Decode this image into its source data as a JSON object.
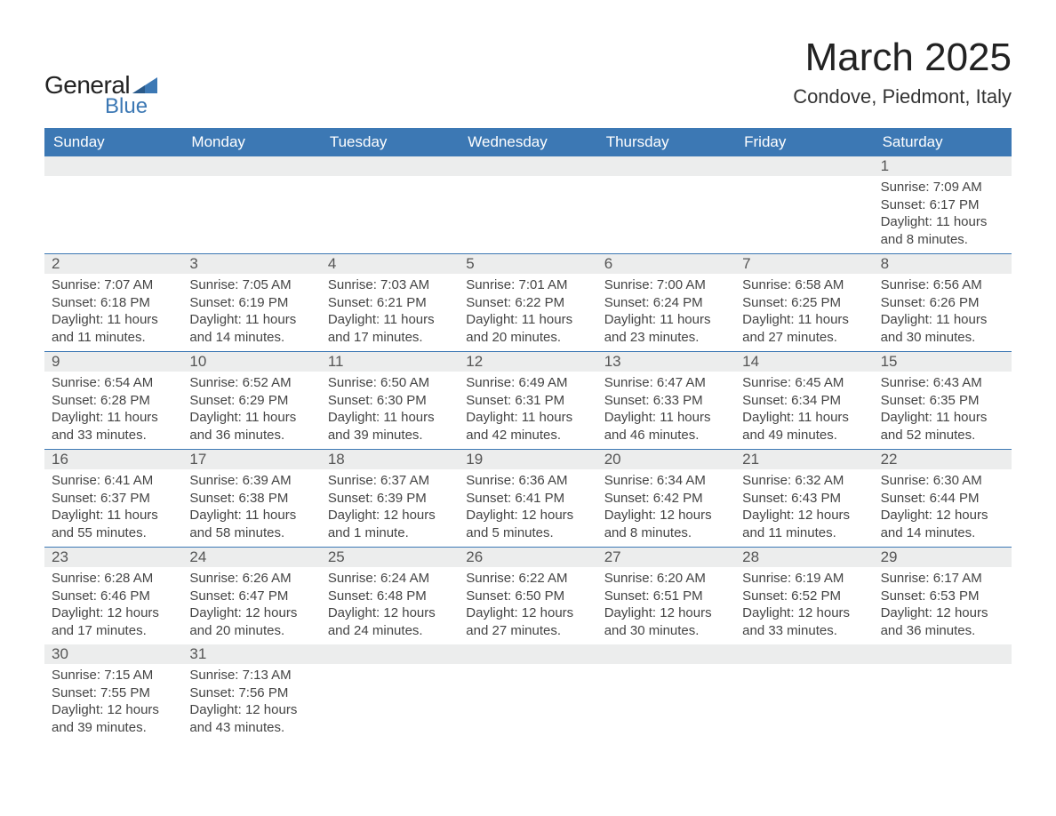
{
  "logo": {
    "text_general": "General",
    "text_blue": "Blue",
    "flag_color": "#3c78b4"
  },
  "title": {
    "month": "March 2025",
    "location": "Condove, Piedmont, Italy",
    "month_fontsize": 44,
    "location_fontsize": 22,
    "text_color": "#222222"
  },
  "style": {
    "header_bg": "#3c78b4",
    "header_text": "#ffffff",
    "daynum_bg": "#eceded",
    "body_text": "#444444",
    "rule_color": "#3c78b4",
    "font_family": "Arial"
  },
  "weekdays": [
    "Sunday",
    "Monday",
    "Tuesday",
    "Wednesday",
    "Thursday",
    "Friday",
    "Saturday"
  ],
  "weeks": [
    [
      {
        "day": "",
        "sunrise": "",
        "sunset": "",
        "daylight": ""
      },
      {
        "day": "",
        "sunrise": "",
        "sunset": "",
        "daylight": ""
      },
      {
        "day": "",
        "sunrise": "",
        "sunset": "",
        "daylight": ""
      },
      {
        "day": "",
        "sunrise": "",
        "sunset": "",
        "daylight": ""
      },
      {
        "day": "",
        "sunrise": "",
        "sunset": "",
        "daylight": ""
      },
      {
        "day": "",
        "sunrise": "",
        "sunset": "",
        "daylight": ""
      },
      {
        "day": "1",
        "sunrise": "Sunrise: 7:09 AM",
        "sunset": "Sunset: 6:17 PM",
        "daylight": "Daylight: 11 hours and 8 minutes."
      }
    ],
    [
      {
        "day": "2",
        "sunrise": "Sunrise: 7:07 AM",
        "sunset": "Sunset: 6:18 PM",
        "daylight": "Daylight: 11 hours and 11 minutes."
      },
      {
        "day": "3",
        "sunrise": "Sunrise: 7:05 AM",
        "sunset": "Sunset: 6:19 PM",
        "daylight": "Daylight: 11 hours and 14 minutes."
      },
      {
        "day": "4",
        "sunrise": "Sunrise: 7:03 AM",
        "sunset": "Sunset: 6:21 PM",
        "daylight": "Daylight: 11 hours and 17 minutes."
      },
      {
        "day": "5",
        "sunrise": "Sunrise: 7:01 AM",
        "sunset": "Sunset: 6:22 PM",
        "daylight": "Daylight: 11 hours and 20 minutes."
      },
      {
        "day": "6",
        "sunrise": "Sunrise: 7:00 AM",
        "sunset": "Sunset: 6:24 PM",
        "daylight": "Daylight: 11 hours and 23 minutes."
      },
      {
        "day": "7",
        "sunrise": "Sunrise: 6:58 AM",
        "sunset": "Sunset: 6:25 PM",
        "daylight": "Daylight: 11 hours and 27 minutes."
      },
      {
        "day": "8",
        "sunrise": "Sunrise: 6:56 AM",
        "sunset": "Sunset: 6:26 PM",
        "daylight": "Daylight: 11 hours and 30 minutes."
      }
    ],
    [
      {
        "day": "9",
        "sunrise": "Sunrise: 6:54 AM",
        "sunset": "Sunset: 6:28 PM",
        "daylight": "Daylight: 11 hours and 33 minutes."
      },
      {
        "day": "10",
        "sunrise": "Sunrise: 6:52 AM",
        "sunset": "Sunset: 6:29 PM",
        "daylight": "Daylight: 11 hours and 36 minutes."
      },
      {
        "day": "11",
        "sunrise": "Sunrise: 6:50 AM",
        "sunset": "Sunset: 6:30 PM",
        "daylight": "Daylight: 11 hours and 39 minutes."
      },
      {
        "day": "12",
        "sunrise": "Sunrise: 6:49 AM",
        "sunset": "Sunset: 6:31 PM",
        "daylight": "Daylight: 11 hours and 42 minutes."
      },
      {
        "day": "13",
        "sunrise": "Sunrise: 6:47 AM",
        "sunset": "Sunset: 6:33 PM",
        "daylight": "Daylight: 11 hours and 46 minutes."
      },
      {
        "day": "14",
        "sunrise": "Sunrise: 6:45 AM",
        "sunset": "Sunset: 6:34 PM",
        "daylight": "Daylight: 11 hours and 49 minutes."
      },
      {
        "day": "15",
        "sunrise": "Sunrise: 6:43 AM",
        "sunset": "Sunset: 6:35 PM",
        "daylight": "Daylight: 11 hours and 52 minutes."
      }
    ],
    [
      {
        "day": "16",
        "sunrise": "Sunrise: 6:41 AM",
        "sunset": "Sunset: 6:37 PM",
        "daylight": "Daylight: 11 hours and 55 minutes."
      },
      {
        "day": "17",
        "sunrise": "Sunrise: 6:39 AM",
        "sunset": "Sunset: 6:38 PM",
        "daylight": "Daylight: 11 hours and 58 minutes."
      },
      {
        "day": "18",
        "sunrise": "Sunrise: 6:37 AM",
        "sunset": "Sunset: 6:39 PM",
        "daylight": "Daylight: 12 hours and 1 minute."
      },
      {
        "day": "19",
        "sunrise": "Sunrise: 6:36 AM",
        "sunset": "Sunset: 6:41 PM",
        "daylight": "Daylight: 12 hours and 5 minutes."
      },
      {
        "day": "20",
        "sunrise": "Sunrise: 6:34 AM",
        "sunset": "Sunset: 6:42 PM",
        "daylight": "Daylight: 12 hours and 8 minutes."
      },
      {
        "day": "21",
        "sunrise": "Sunrise: 6:32 AM",
        "sunset": "Sunset: 6:43 PM",
        "daylight": "Daylight: 12 hours and 11 minutes."
      },
      {
        "day": "22",
        "sunrise": "Sunrise: 6:30 AM",
        "sunset": "Sunset: 6:44 PM",
        "daylight": "Daylight: 12 hours and 14 minutes."
      }
    ],
    [
      {
        "day": "23",
        "sunrise": "Sunrise: 6:28 AM",
        "sunset": "Sunset: 6:46 PM",
        "daylight": "Daylight: 12 hours and 17 minutes."
      },
      {
        "day": "24",
        "sunrise": "Sunrise: 6:26 AM",
        "sunset": "Sunset: 6:47 PM",
        "daylight": "Daylight: 12 hours and 20 minutes."
      },
      {
        "day": "25",
        "sunrise": "Sunrise: 6:24 AM",
        "sunset": "Sunset: 6:48 PM",
        "daylight": "Daylight: 12 hours and 24 minutes."
      },
      {
        "day": "26",
        "sunrise": "Sunrise: 6:22 AM",
        "sunset": "Sunset: 6:50 PM",
        "daylight": "Daylight: 12 hours and 27 minutes."
      },
      {
        "day": "27",
        "sunrise": "Sunrise: 6:20 AM",
        "sunset": "Sunset: 6:51 PM",
        "daylight": "Daylight: 12 hours and 30 minutes."
      },
      {
        "day": "28",
        "sunrise": "Sunrise: 6:19 AM",
        "sunset": "Sunset: 6:52 PM",
        "daylight": "Daylight: 12 hours and 33 minutes."
      },
      {
        "day": "29",
        "sunrise": "Sunrise: 6:17 AM",
        "sunset": "Sunset: 6:53 PM",
        "daylight": "Daylight: 12 hours and 36 minutes."
      }
    ],
    [
      {
        "day": "30",
        "sunrise": "Sunrise: 7:15 AM",
        "sunset": "Sunset: 7:55 PM",
        "daylight": "Daylight: 12 hours and 39 minutes."
      },
      {
        "day": "31",
        "sunrise": "Sunrise: 7:13 AM",
        "sunset": "Sunset: 7:56 PM",
        "daylight": "Daylight: 12 hours and 43 minutes."
      },
      {
        "day": "",
        "sunrise": "",
        "sunset": "",
        "daylight": ""
      },
      {
        "day": "",
        "sunrise": "",
        "sunset": "",
        "daylight": ""
      },
      {
        "day": "",
        "sunrise": "",
        "sunset": "",
        "daylight": ""
      },
      {
        "day": "",
        "sunrise": "",
        "sunset": "",
        "daylight": ""
      },
      {
        "day": "",
        "sunrise": "",
        "sunset": "",
        "daylight": ""
      }
    ]
  ]
}
